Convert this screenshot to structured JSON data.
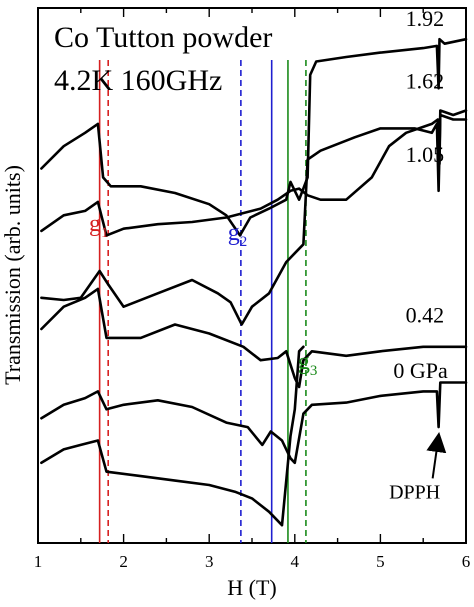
{
  "chart_data": {
    "type": "line",
    "title_lines": [
      "Co Tutton powder",
      "4.2K 160GHz"
    ],
    "xlabel": "H (T)",
    "ylabel": "Transmission (arb. units)",
    "xlim": [
      1,
      6
    ],
    "ylim": [
      0,
      12
    ],
    "x_ticks": [
      1,
      2,
      3,
      4,
      5,
      6
    ],
    "x_tick_labels": [
      "1",
      "2",
      "3",
      "4",
      "5",
      "6"
    ],
    "minor_x_step": 0.5,
    "grid": false,
    "series": [
      {
        "name": "1.92",
        "points": [
          [
            1.04,
            8.4
          ],
          [
            1.3,
            8.9
          ],
          [
            1.55,
            9.2
          ],
          [
            1.7,
            9.4
          ],
          [
            1.76,
            8.2
          ],
          [
            1.85,
            8.0
          ],
          [
            2.2,
            8.0
          ],
          [
            2.6,
            7.85
          ],
          [
            3.0,
            7.6
          ],
          [
            3.2,
            7.35
          ],
          [
            3.36,
            6.9
          ],
          [
            3.48,
            7.3
          ],
          [
            3.7,
            7.5
          ],
          [
            3.9,
            7.7
          ],
          [
            3.95,
            8.1
          ],
          [
            4.05,
            7.7
          ],
          [
            4.15,
            8.2
          ],
          [
            4.18,
            10.5
          ],
          [
            4.25,
            10.8
          ],
          [
            4.6,
            10.9
          ],
          [
            5.0,
            11.0
          ],
          [
            5.5,
            11.1
          ],
          [
            5.66,
            11.15
          ],
          [
            5.68,
            10.2
          ],
          [
            5.69,
            11.3
          ],
          [
            5.75,
            11.2
          ],
          [
            6.0,
            11.3
          ]
        ]
      },
      {
        "name": "1.62",
        "points": [
          [
            1.04,
            7.0
          ],
          [
            1.3,
            7.35
          ],
          [
            1.55,
            7.45
          ],
          [
            1.7,
            7.65
          ],
          [
            1.8,
            6.9
          ],
          [
            2.0,
            7.05
          ],
          [
            2.4,
            7.15
          ],
          [
            2.8,
            7.2
          ],
          [
            3.2,
            7.3
          ],
          [
            3.6,
            7.5
          ],
          [
            3.8,
            7.7
          ],
          [
            3.95,
            7.9
          ],
          [
            4.05,
            7.95
          ],
          [
            4.15,
            7.8
          ],
          [
            4.3,
            7.7
          ],
          [
            4.6,
            7.7
          ],
          [
            4.9,
            8.2
          ],
          [
            5.1,
            8.9
          ],
          [
            5.3,
            9.2
          ],
          [
            5.6,
            9.4
          ],
          [
            5.67,
            9.5
          ],
          [
            5.69,
            8.5
          ],
          [
            5.7,
            9.7
          ],
          [
            5.85,
            9.6
          ],
          [
            6.0,
            9.7
          ]
        ]
      },
      {
        "name": "1.05",
        "points": [
          [
            1.04,
            5.5
          ],
          [
            1.3,
            5.45
          ],
          [
            1.5,
            5.5
          ],
          [
            1.72,
            6.1
          ],
          [
            1.82,
            5.8
          ],
          [
            2.0,
            5.3
          ],
          [
            2.4,
            5.6
          ],
          [
            2.8,
            5.9
          ],
          [
            3.1,
            5.6
          ],
          [
            3.25,
            5.4
          ],
          [
            3.38,
            4.9
          ],
          [
            3.5,
            5.3
          ],
          [
            3.7,
            5.6
          ],
          [
            3.9,
            6.3
          ],
          [
            4.0,
            6.5
          ],
          [
            4.1,
            6.7
          ],
          [
            4.15,
            8.6
          ],
          [
            4.3,
            8.8
          ],
          [
            4.7,
            9.1
          ],
          [
            5.0,
            9.3
          ],
          [
            5.4,
            9.3
          ],
          [
            5.6,
            9.2
          ],
          [
            5.66,
            9.4
          ],
          [
            5.68,
            7.9
          ],
          [
            5.7,
            9.6
          ],
          [
            5.85,
            9.5
          ],
          [
            6.0,
            9.5
          ]
        ]
      },
      {
        "name": "0.42",
        "points": [
          [
            1.04,
            4.8
          ],
          [
            1.3,
            5.3
          ],
          [
            1.55,
            5.5
          ],
          [
            1.7,
            5.7
          ],
          [
            1.8,
            4.6
          ],
          [
            2.2,
            4.6
          ],
          [
            2.6,
            4.9
          ],
          [
            3.0,
            4.7
          ],
          [
            3.4,
            4.4
          ],
          [
            3.6,
            4.1
          ],
          [
            3.8,
            4.15
          ],
          [
            3.9,
            4.3
          ],
          [
            4.0,
            3.7
          ],
          [
            4.05,
            3.5
          ],
          [
            4.1,
            4.1
          ],
          [
            4.2,
            4.3
          ],
          [
            4.6,
            4.2
          ],
          [
            5.0,
            4.3
          ],
          [
            5.5,
            4.4
          ],
          [
            6.0,
            4.4
          ]
        ]
      },
      {
        "name": "0 GPa",
        "points": [
          [
            1.04,
            2.8
          ],
          [
            1.3,
            3.1
          ],
          [
            1.55,
            3.25
          ],
          [
            1.7,
            3.4
          ],
          [
            1.8,
            3.0
          ],
          [
            2.0,
            3.1
          ],
          [
            2.4,
            3.2
          ],
          [
            2.8,
            3.05
          ],
          [
            3.2,
            2.7
          ],
          [
            3.45,
            2.6
          ],
          [
            3.62,
            2.2
          ],
          [
            3.72,
            2.5
          ],
          [
            3.85,
            2.3
          ],
          [
            3.95,
            1.9
          ],
          [
            4.0,
            1.8
          ],
          [
            4.1,
            2.9
          ],
          [
            4.2,
            3.1
          ],
          [
            4.6,
            3.15
          ],
          [
            5.0,
            3.3
          ],
          [
            5.5,
            3.4
          ],
          [
            5.66,
            3.4
          ],
          [
            5.68,
            2.6
          ],
          [
            5.7,
            3.6
          ],
          [
            5.85,
            3.6
          ],
          [
            6.0,
            3.6
          ]
        ]
      },
      {
        "name": "",
        "points": [
          [
            1.04,
            1.8
          ],
          [
            1.3,
            2.1
          ],
          [
            1.5,
            2.2
          ],
          [
            1.7,
            2.3
          ],
          [
            1.8,
            1.6
          ],
          [
            2.2,
            1.5
          ],
          [
            2.6,
            1.4
          ],
          [
            3.0,
            1.3
          ],
          [
            3.3,
            1.15
          ],
          [
            3.5,
            1.0
          ],
          [
            3.7,
            0.7
          ],
          [
            3.85,
            0.4
          ],
          [
            3.95,
            2.4
          ],
          [
            4.0,
            3.0
          ],
          [
            4.05,
            4.3
          ],
          [
            4.1,
            4.4
          ]
        ]
      }
    ],
    "vertical_lines": [
      {
        "x": 1.72,
        "color": "#d62020",
        "style": "solid"
      },
      {
        "x": 1.82,
        "color": "#d62020",
        "style": "dashed"
      },
      {
        "x": 3.37,
        "color": "#1f1fd0",
        "style": "dashed"
      },
      {
        "x": 3.73,
        "color": "#1f1fd0",
        "style": "solid"
      },
      {
        "x": 3.92,
        "color": "#1a8a1a",
        "style": "solid"
      },
      {
        "x": 4.13,
        "color": "#1a8a1a",
        "style": "dashed"
      }
    ],
    "pressure_labels": [
      {
        "text": "1.92",
        "x": 5.52,
        "y": 11.6
      },
      {
        "text": "1.62",
        "x": 5.52,
        "y": 10.2
      },
      {
        "text": "1.05",
        "x": 5.52,
        "y": 8.55
      },
      {
        "text": "0.42",
        "x": 5.52,
        "y": 4.95
      },
      {
        "text": "0 GPa",
        "x": 5.47,
        "y": 3.7
      }
    ],
    "g_labels": [
      {
        "text": "g",
        "sub": "1",
        "x": 1.71,
        "y": 7.0,
        "color": "#d62020"
      },
      {
        "text": "g",
        "sub": "2",
        "x": 3.33,
        "y": 6.8,
        "color": "#1f1fd0"
      },
      {
        "text": "g",
        "sub": "3",
        "x": 4.15,
        "y": 3.9,
        "color": "#1a8a1a"
      }
    ],
    "annotation": {
      "text": "DPPH",
      "x": 5.4,
      "y": 1.0,
      "arrow_to": [
        5.68,
        2.4
      ]
    }
  }
}
